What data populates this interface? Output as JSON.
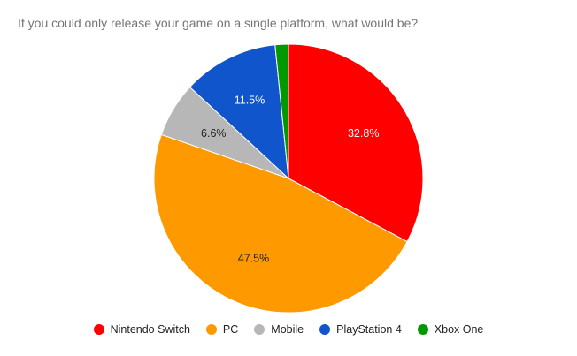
{
  "chart_data": {
    "type": "pie",
    "title": "If you could only release your game on a single platform, what would be?",
    "slices": [
      {
        "name": "Nintendo Switch",
        "value": 32.8,
        "label": "32.8%",
        "color": "#ff0000",
        "label_color": "#ffffff"
      },
      {
        "name": "PC",
        "value": 47.5,
        "label": "47.5%",
        "color": "#ff9900",
        "label_color": "#222222"
      },
      {
        "name": "Mobile",
        "value": 6.6,
        "label": "6.6%",
        "color": "#b7b7b7",
        "label_color": "#222222"
      },
      {
        "name": "PlayStation 4",
        "value": 11.5,
        "label": "11.5%",
        "color": "#1155cc",
        "label_color": "#ffffff"
      },
      {
        "name": "Xbox One",
        "value": 1.6,
        "label": "",
        "color": "#009900",
        "label_color": "#ffffff"
      }
    ],
    "legend_position": "bottom"
  }
}
